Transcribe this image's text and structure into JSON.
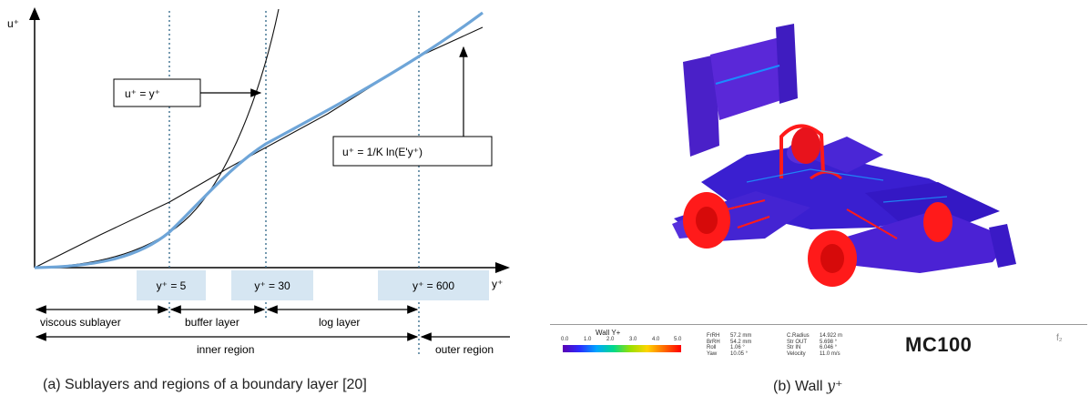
{
  "panel_a": {
    "axis_y_label": "u⁺",
    "axis_x_label": "y⁺",
    "formula_linear": "u⁺ = y⁺",
    "formula_log": "u⁺ = 1/K ln(E'y⁺)",
    "markers": [
      "y⁺ = 5",
      "y⁺ = 30",
      "y⁺ = 600"
    ],
    "layers": {
      "viscous": "viscous sublayer",
      "buffer": "buffer layer",
      "log": "log layer",
      "inner": "inner region",
      "outer": "outer region"
    },
    "caption": "(a)  Sublayers and regions of a boundary layer [20]",
    "colors": {
      "measured_curve": "#5b9bd5",
      "marker_box": "#d6e6f2",
      "dotted_line": "#3b6f8f"
    }
  },
  "panel_b": {
    "caption_prefix": "(b)  Wall ",
    "caption_math": "y⁺",
    "legend_title": "Wall Y+",
    "legend_ticks": [
      "0.0",
      "1.0",
      "2.0",
      "3.0",
      "4.0",
      "5.0"
    ],
    "params_col1": "FrRH\nBrRH\nRoll\nYaw",
    "params_col2": "57.2 mm\n54.2 mm\n1.06 °\n10.05 °",
    "params_col3": "C.Radius\nStr OUT\nStr IN\nVelocity",
    "params_col4": "14.922 m\n5.698 °\n6.046 °\n11.0 m/s",
    "model_name": "MC100",
    "logo": "f₂",
    "colors": {
      "body": "#3a1fd0",
      "wheels": "#ff1a1a"
    }
  }
}
